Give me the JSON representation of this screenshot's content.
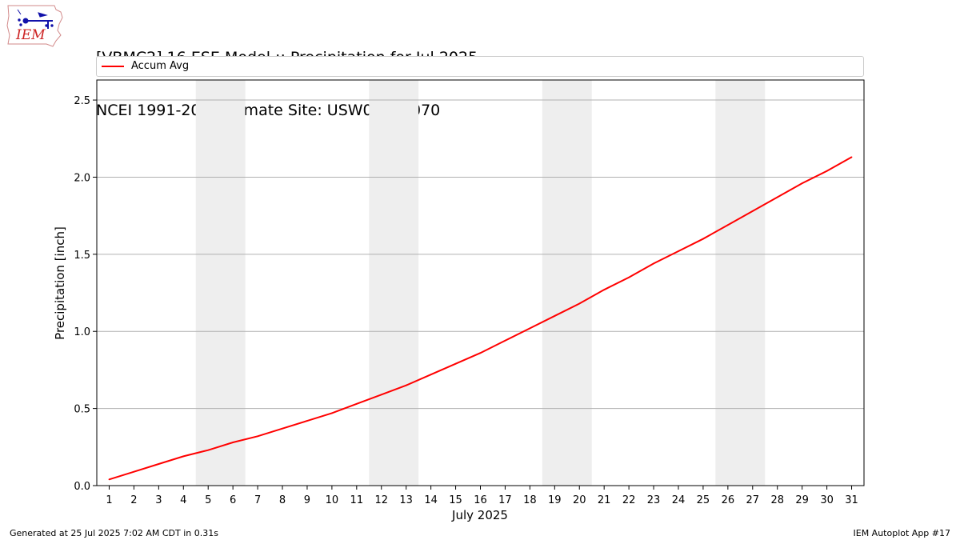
{
  "logo": {
    "text": "IEM",
    "name": "iem-logo",
    "color": "#cc2222",
    "icon": "iowa-map-weather-station-icon"
  },
  "title": {
    "line1": "[VBMC2] 16 ESE Model :: Precipitation for Jul 2025",
    "line2": "NCEI 1991-2020 Climate Site: USW00023070"
  },
  "footer": {
    "left": "Generated at 25 Jul 2025 7:02 AM CDT in 0.31s",
    "right": "IEM Autoplot App #17"
  },
  "chart_data": {
    "type": "line",
    "title": "[VBMC2] 16 ESE Model :: Precipitation for Jul 2025",
    "subtitle": "NCEI 1991-2020 Climate Site: USW00023070",
    "xlabel": "July 2025",
    "ylabel": "Precipitation [inch]",
    "x": [
      1,
      2,
      3,
      4,
      5,
      6,
      7,
      8,
      9,
      10,
      11,
      12,
      13,
      14,
      15,
      16,
      17,
      18,
      19,
      20,
      21,
      22,
      23,
      24,
      25,
      26,
      27,
      28,
      29,
      30,
      31
    ],
    "xlim": [
      0.5,
      31.5
    ],
    "ylim": [
      0,
      2.63
    ],
    "yticks": [
      0.0,
      0.5,
      1.0,
      1.5,
      2.0,
      2.5
    ],
    "ytick_labels": [
      "0.0",
      "0.5",
      "1.0",
      "1.5",
      "2.0",
      "2.5"
    ],
    "grid": "horizontal",
    "legend_position": "top (above plot, full width)",
    "weekend_shading": [
      [
        4.5,
        6.5
      ],
      [
        11.5,
        13.5
      ],
      [
        18.5,
        20.5
      ],
      [
        25.5,
        27.5
      ]
    ],
    "weekend_color": "#eeeeee",
    "series": [
      {
        "name": "Accum Avg",
        "color": "#ff0000",
        "values": [
          0.04,
          0.09,
          0.14,
          0.19,
          0.23,
          0.28,
          0.32,
          0.37,
          0.42,
          0.47,
          0.53,
          0.59,
          0.65,
          0.72,
          0.79,
          0.86,
          0.94,
          1.02,
          1.1,
          1.18,
          1.27,
          1.35,
          1.44,
          1.52,
          1.6,
          1.69,
          1.78,
          1.87,
          1.96,
          2.04,
          2.13
        ]
      }
    ]
  }
}
